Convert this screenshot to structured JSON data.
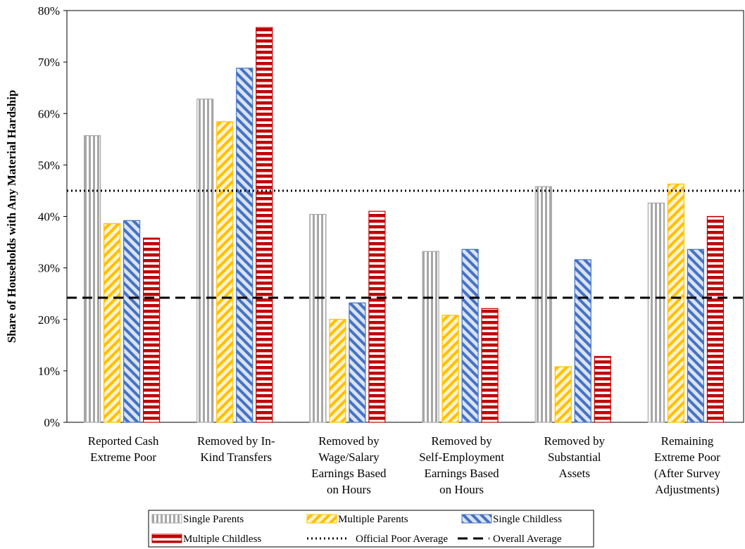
{
  "chart_data": {
    "type": "bar",
    "ylabel": "Share of Households with Any Material Hardship",
    "xlabel": "",
    "ylim": [
      0,
      80
    ],
    "yticks": [
      0,
      10,
      20,
      30,
      40,
      50,
      60,
      70,
      80
    ],
    "ytick_labels": [
      "0%",
      "10%",
      "20%",
      "30%",
      "40%",
      "50%",
      "60%",
      "70%",
      "80%"
    ],
    "categories": [
      [
        "Reported Cash",
        "Extreme Poor"
      ],
      [
        "Removed by In-",
        "Kind Transfers"
      ],
      [
        "Removed by",
        "Wage/Salary",
        "Earnings Based",
        "on Hours"
      ],
      [
        "Removed by",
        "Self-Employment",
        "Earnings Based",
        "on Hours"
      ],
      [
        "Removed by",
        "Substantial",
        "Assets"
      ],
      [
        "Remaining",
        "Extreme Poor",
        "(After Survey",
        "Adjustments)"
      ]
    ],
    "series": [
      {
        "name": "Single Parents",
        "values": [
          55.7,
          62.8,
          40.4,
          33.2,
          45.8,
          42.6
        ],
        "color": "#a6a6a6",
        "pattern": "vertical-stripes"
      },
      {
        "name": "Multiple Parents",
        "values": [
          38.6,
          58.4,
          20.0,
          20.8,
          10.8,
          46.3
        ],
        "color": "#ffc000",
        "pattern": "diagonal-up"
      },
      {
        "name": "Single Childless",
        "values": [
          39.2,
          68.8,
          23.2,
          33.6,
          31.6,
          33.6
        ],
        "color": "#4472c4",
        "pattern": "diagonal-down"
      },
      {
        "name": "Multiple Childless",
        "values": [
          35.8,
          76.7,
          41.0,
          22.1,
          12.8,
          40.0
        ],
        "color": "#c00000",
        "pattern": "horizontal-stripes"
      }
    ],
    "reference_lines": [
      {
        "name": "Official Poor Average",
        "value": 45.0,
        "style": "dotted"
      },
      {
        "name": "Overall Average",
        "value": 24.2,
        "style": "dashed"
      }
    ],
    "legend_placement": "bottom",
    "grid": false
  }
}
